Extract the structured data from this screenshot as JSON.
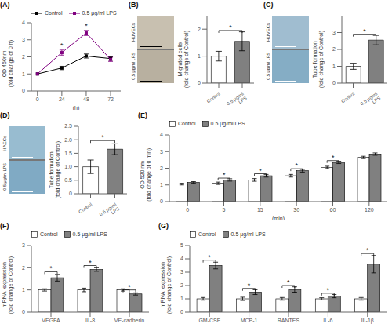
{
  "chart_data": [
    {
      "type": "line",
      "title": "(A)",
      "xlabel": "(h)",
      "ylabel": "OD 450nm\n(fold change of 0 h)",
      "x": [
        0,
        24,
        48,
        72
      ],
      "xlim": [
        -6,
        82
      ],
      "xticks": [
        0,
        24,
        48,
        72
      ],
      "ylim": [
        0,
        4
      ],
      "yticks": [
        0,
        1,
        2,
        3,
        4
      ],
      "legend": "upper left",
      "series": [
        {
          "name": "Control",
          "color": "#000000",
          "marker": "square",
          "values": [
            1.0,
            1.35,
            2.05,
            1.9
          ],
          "errors": [
            0.0,
            0.1,
            0.12,
            0.1
          ]
        },
        {
          "name": "0.5 μg/ml LPS",
          "color": "#800080",
          "marker": "square",
          "values": [
            1.0,
            2.25,
            3.4,
            1.85
          ],
          "errors": [
            0.0,
            0.15,
            0.15,
            0.12
          ]
        }
      ],
      "annotations": [
        {
          "text": "*",
          "x": 24,
          "y": 2.48
        },
        {
          "text": "*",
          "x": 48,
          "y": 3.65
        }
      ]
    },
    {
      "type": "bar",
      "title": "(B)",
      "image_labels": [
        "HUVECs",
        "0.5 μg/ml LPS"
      ],
      "ylabel": "Migrated cells\n(fold change of Control)",
      "categories": [
        "Control",
        "0.5 μg/ml\nLPS"
      ],
      "values": [
        1.0,
        1.55
      ],
      "errors": [
        0.18,
        0.35
      ],
      "colors": [
        "#ffffff",
        "#808080"
      ],
      "ylim": [
        0,
        2.5
      ],
      "yticks": [
        0,
        1,
        2
      ],
      "star_y": 1.95,
      "star_label": "*"
    },
    {
      "type": "bar",
      "title": "(C)",
      "image_labels": [
        "HUVECs",
        "0.5 μg/ml LPS"
      ],
      "ylabel": "Tube formation\n(fold change of Control)",
      "categories": [
        "Control",
        "0.5 μg/ml\nLPS"
      ],
      "values": [
        1.0,
        2.55
      ],
      "errors": [
        0.18,
        0.28
      ],
      "colors": [
        "#ffffff",
        "#808080"
      ],
      "ylim": [
        0,
        4
      ],
      "yticks": [
        0,
        1,
        2,
        3
      ],
      "star_y": 2.9,
      "star_label": "*"
    },
    {
      "type": "bar",
      "title": "(D)",
      "image_labels": [
        "HAECs",
        "0.5 μg/ml LPS"
      ],
      "ylabel": "Tube formation\n(fold change of Control)",
      "categories": [
        "Control",
        "0.5 μg/ml\nLPS"
      ],
      "values": [
        1.0,
        1.65
      ],
      "errors": [
        0.25,
        0.2
      ],
      "colors": [
        "#ffffff",
        "#808080"
      ],
      "ylim": [
        0,
        2.5
      ],
      "yticks": [
        0,
        0.5,
        {
          "value": 1,
          "label": "1.0"
        },
        1.5,
        {
          "value": 2,
          "label": "2.0"
        },
        2.5
      ],
      "star_y": 1.97,
      "star_label": "*"
    },
    {
      "type": "bar",
      "title": "(E)",
      "xlabel": "(min)",
      "ylabel": "OD 520 nm\n(fold change of 0 min)",
      "categories": [
        0,
        5,
        15,
        30,
        60,
        120
      ],
      "ylim": [
        0,
        4
      ],
      "yticks": [
        0,
        1,
        2,
        3,
        4
      ],
      "legend": "upper left",
      "series": [
        {
          "name": "Control",
          "color": "#ffffff",
          "values": [
            1.05,
            1.1,
            1.3,
            1.55,
            2.05,
            2.65
          ],
          "errors": [
            0.05,
            0.07,
            0.08,
            0.08,
            0.07,
            0.07
          ]
        },
        {
          "name": "0.5 μg/ml LPS",
          "color": "#808080",
          "values": [
            1.15,
            1.3,
            1.55,
            1.85,
            2.35,
            2.85
          ],
          "errors": [
            0.05,
            0.07,
            0.08,
            0.08,
            0.07,
            0.07
          ]
        }
      ],
      "star_y": [
        null,
        1.41,
        1.67,
        1.97,
        2.46,
        null
      ],
      "star_label": "*"
    },
    {
      "type": "bar",
      "title": "(F)",
      "ylabel": "mRNA  expression\n(fold change of Control)",
      "categories": [
        "VEGFA",
        "IL-8",
        "VE-cadherin"
      ],
      "ylim": [
        0,
        3
      ],
      "yticks": [
        0,
        1,
        2,
        3
      ],
      "legend": "upper left",
      "series": [
        {
          "name": "Control",
          "color": "#ffffff",
          "values": [
            1.0,
            1.0,
            1.0
          ],
          "errors": [
            0.05,
            0.08,
            0.05
          ]
        },
        {
          "name": "0.5 μg/ml LPS",
          "color": "#808080",
          "values": [
            1.55,
            1.92,
            0.82
          ],
          "errors": [
            0.15,
            0.08,
            0.05
          ]
        }
      ],
      "star_y": [
        1.82,
        2.1,
        1.0
      ],
      "star_label": "*"
    },
    {
      "type": "bar",
      "title": "(G)",
      "ylabel": "mRNA  expression\n(fold change of Control)",
      "categories": [
        "GM-CSF",
        "MCP-1",
        "RANTES",
        "IL-6",
        "IL-1β"
      ],
      "ylim": [
        0,
        5
      ],
      "yticks": [
        0,
        1,
        2,
        3,
        4,
        5
      ],
      "legend": "upper left",
      "series": [
        {
          "name": "Control",
          "color": "#ffffff",
          "values": [
            1.0,
            1.0,
            1.0,
            1.0,
            1.0
          ],
          "errors": [
            0.1,
            0.12,
            0.1,
            0.08,
            0.1
          ]
        },
        {
          "name": "0.5 μg/ml LPS",
          "color": "#808080",
          "values": [
            3.5,
            1.5,
            1.7,
            1.2,
            3.6
          ],
          "errors": [
            0.25,
            0.18,
            0.2,
            0.12,
            0.65
          ]
        }
      ],
      "star_y": [
        3.9,
        1.78,
        2.0,
        1.42,
        4.4
      ],
      "star_label": "*"
    }
  ]
}
